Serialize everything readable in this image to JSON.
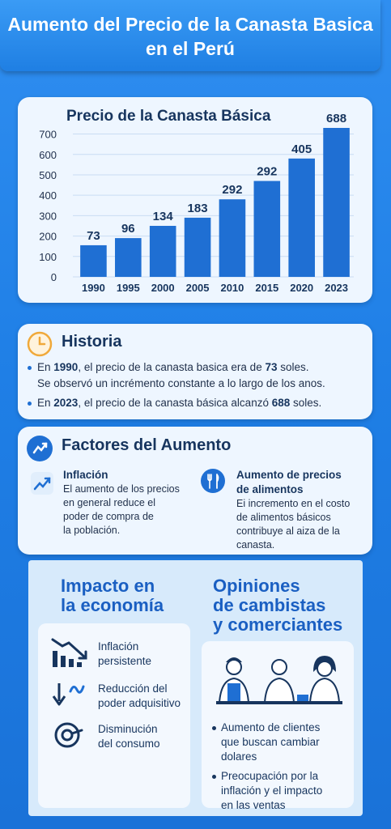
{
  "header": {
    "line1": "Aumento del Precio de la Canasta Basica",
    "line2": "en el Perú"
  },
  "chart_data": {
    "type": "bar",
    "title": "Precio de la Canasta Básica",
    "categories": [
      "1990",
      "1995",
      "2000",
      "2005",
      "2010",
      "2015",
      "2020",
      "2023"
    ],
    "values": [
      73,
      96,
      134,
      183,
      292,
      292,
      405,
      688
    ],
    "bar_heights_estimated": [
      155,
      190,
      250,
      290,
      380,
      470,
      580,
      730
    ],
    "yticks": [
      "0",
      "100",
      "200",
      "300",
      "400",
      "500",
      "600",
      "700"
    ],
    "ylim": [
      0,
      730
    ],
    "grid": true,
    "bar_color": "#1f6fd3"
  },
  "historia": {
    "title": "Historia",
    "bullet1": {
      "pre": "En ",
      "year": "1990",
      "mid": ", el precio de la canasta basica era de ",
      "amount": "73",
      "post": " soles.",
      "line2": "Se observó un incrémento constante a lo largo de los anos."
    },
    "bullet2": {
      "pre": "En ",
      "year": "2023",
      "mid": ", el precio de la canasta básica alcanzó ",
      "amount": "688",
      "post": " soles."
    }
  },
  "factores": {
    "title": "Factores del Aumento",
    "f1": {
      "title": "Inflación",
      "lines": [
        "El aumento de los precios",
        "en general reduce el",
        "poder de compra de",
        "la población."
      ]
    },
    "f2": {
      "title_lines": [
        "Aumento de precios",
        "de alimentos"
      ],
      "lines": [
        "Ei incremento en el costo",
        "de alimentos básicos",
        "contribuye al aiza de la",
        "canasta."
      ]
    }
  },
  "impacto": {
    "title_lines": [
      "Impacto en",
      "la economía"
    ],
    "items": [
      {
        "icon": "declining-chart-icon",
        "lines": [
          "Inflación",
          "persistente"
        ]
      },
      {
        "icon": "down-arrow-icon",
        "lines": [
          "Reducción del",
          "poder adquisitivo"
        ]
      },
      {
        "icon": "coin-icon",
        "lines": [
          "Disminución",
          "del consumo"
        ]
      }
    ]
  },
  "opiniones": {
    "title_lines": [
      "Opiniones",
      "de cambistas",
      "y comerciantes"
    ],
    "items": [
      [
        "Aumento de clientes",
        "que buscan cambiar",
        "dolares"
      ],
      [
        "Preocupación por la",
        "inflación y el impacto",
        "en las ventas"
      ]
    ]
  }
}
